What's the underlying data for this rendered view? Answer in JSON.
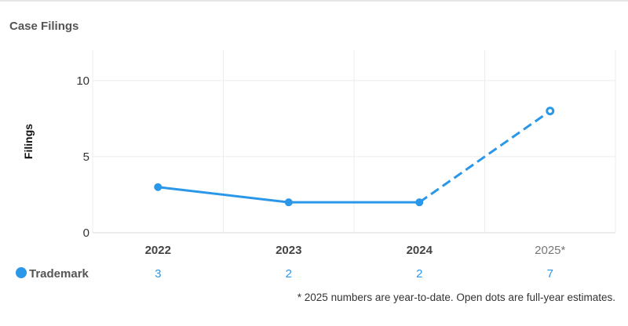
{
  "card": {
    "title": "Case Filings"
  },
  "footnote": "* 2025 numbers are year-to-date. Open dots are full-year estimates.",
  "colors": {
    "series": "#2b97e8",
    "grid": "#ececec",
    "axis_text": "#333333",
    "muted_text": "#777777"
  },
  "chart_data": {
    "type": "line",
    "ylabel": "Filings",
    "xlabel": "",
    "ylim": [
      0,
      12
    ],
    "yticks": [
      0,
      5,
      10
    ],
    "categories": [
      "2022",
      "2023",
      "2024",
      "2025*"
    ],
    "legend_placement": "bottom-left",
    "grid": true,
    "series": [
      {
        "name": "Trademark",
        "values": [
          3,
          2,
          2,
          8
        ],
        "table_values": [
          "3",
          "2",
          "2",
          "7"
        ],
        "open_points": [
          false,
          false,
          false,
          true
        ],
        "dashed_from_index": 2
      }
    ]
  }
}
